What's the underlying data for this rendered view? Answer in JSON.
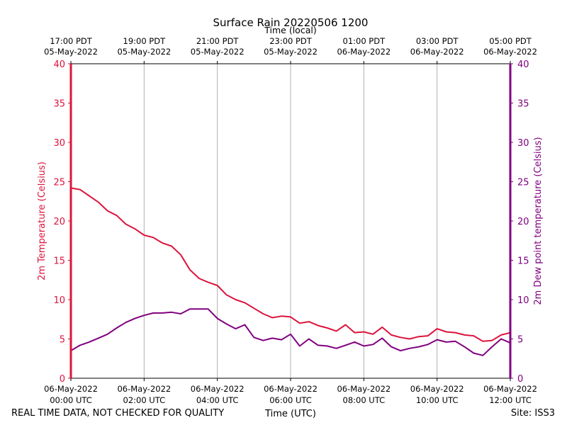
{
  "chart_data": {
    "type": "line",
    "title": "Surface Rain 20220506 1200",
    "top_axis_label": "Time (local)",
    "xlabel": "Time (UTC)",
    "ylabel_left": "2m Temperature (Celsius)",
    "ylabel_right": "2m Dew point temperature (Celsius)",
    "footer_left": "REAL TIME DATA, NOT CHECKED FOR QUALITY",
    "footer_right": "Site: ISS3",
    "x_range_hours": [
      0,
      12
    ],
    "ylim_left": [
      0,
      40
    ],
    "ylim_right": [
      0,
      40
    ],
    "yticks": [
      "0",
      "5",
      "10",
      "15",
      "20",
      "25",
      "30",
      "35",
      "40"
    ],
    "grid_x": true,
    "grid_y": false,
    "colors": {
      "temperature": "#dc143c",
      "dewpoint": "#800080",
      "axis": "#000000",
      "grid": "#b0b0b0"
    },
    "x_ticks_bottom": [
      {
        "hour": 0,
        "line1": "06-May-2022",
        "line2": "00:00 UTC"
      },
      {
        "hour": 2,
        "line1": "06-May-2022",
        "line2": "02:00 UTC"
      },
      {
        "hour": 4,
        "line1": "06-May-2022",
        "line2": "04:00 UTC"
      },
      {
        "hour": 6,
        "line1": "06-May-2022",
        "line2": "06:00 UTC"
      },
      {
        "hour": 8,
        "line1": "06-May-2022",
        "line2": "08:00 UTC"
      },
      {
        "hour": 10,
        "line1": "06-May-2022",
        "line2": "10:00 UTC"
      },
      {
        "hour": 12,
        "line1": "06-May-2022",
        "line2": "12:00 UTC"
      }
    ],
    "x_ticks_top": [
      {
        "hour": 0,
        "line1": "17:00 PDT",
        "line2": "05-May-2022"
      },
      {
        "hour": 2,
        "line1": "19:00 PDT",
        "line2": "05-May-2022"
      },
      {
        "hour": 4,
        "line1": "21:00 PDT",
        "line2": "05-May-2022"
      },
      {
        "hour": 6,
        "line1": "23:00 PDT",
        "line2": "05-May-2022"
      },
      {
        "hour": 8,
        "line1": "01:00 PDT",
        "line2": "06-May-2022"
      },
      {
        "hour": 10,
        "line1": "03:00 PDT",
        "line2": "06-May-2022"
      },
      {
        "hour": 12,
        "line1": "05:00 PDT",
        "line2": "06-May-2022"
      }
    ],
    "series": [
      {
        "name": "2m Temperature",
        "axis": "left",
        "x": [
          0,
          0.25,
          0.5,
          0.75,
          1.0,
          1.25,
          1.5,
          1.75,
          2.0,
          2.25,
          2.5,
          2.75,
          3.0,
          3.25,
          3.5,
          3.75,
          4.0,
          4.25,
          4.5,
          4.75,
          5.0,
          5.25,
          5.5,
          5.75,
          6.0,
          6.25,
          6.5,
          6.75,
          7.0,
          7.25,
          7.5,
          7.75,
          8.0,
          8.25,
          8.5,
          8.75,
          9.0,
          9.25,
          9.5,
          9.75,
          10.0,
          10.25,
          10.5,
          10.75,
          11.0,
          11.25,
          11.5,
          11.75,
          12.0
        ],
        "values": [
          24.2,
          24.0,
          23.2,
          22.4,
          21.3,
          20.7,
          19.6,
          19.0,
          18.2,
          17.9,
          17.2,
          16.8,
          15.7,
          13.8,
          12.7,
          12.2,
          11.8,
          10.6,
          10.0,
          9.6,
          8.9,
          8.2,
          7.7,
          7.9,
          7.8,
          7.0,
          7.2,
          6.7,
          6.4,
          6.0,
          6.8,
          5.8,
          5.9,
          5.6,
          6.5,
          5.5,
          5.2,
          5.0,
          5.3,
          5.4,
          6.3,
          5.9,
          5.8,
          5.5,
          5.4,
          4.7,
          4.8,
          5.5,
          5.8
        ]
      },
      {
        "name": "2m Dew point temperature",
        "axis": "right",
        "x": [
          0,
          0.25,
          0.5,
          0.75,
          1.0,
          1.25,
          1.5,
          1.75,
          2.0,
          2.25,
          2.5,
          2.75,
          3.0,
          3.25,
          3.5,
          3.75,
          4.0,
          4.25,
          4.5,
          4.75,
          5.0,
          5.25,
          5.5,
          5.75,
          6.0,
          6.25,
          6.5,
          6.75,
          7.0,
          7.25,
          7.5,
          7.75,
          8.0,
          8.25,
          8.5,
          8.75,
          9.0,
          9.25,
          9.5,
          9.75,
          10.0,
          10.25,
          10.5,
          10.75,
          11.0,
          11.25,
          11.5,
          11.75,
          12.0
        ],
        "values": [
          3.5,
          4.2,
          4.6,
          5.1,
          5.6,
          6.4,
          7.1,
          7.6,
          8.0,
          8.3,
          8.3,
          8.4,
          8.2,
          8.8,
          8.8,
          8.8,
          7.6,
          6.9,
          6.3,
          6.8,
          5.2,
          4.8,
          5.1,
          4.9,
          5.6,
          4.1,
          5.0,
          4.2,
          4.1,
          3.8,
          4.2,
          4.6,
          4.1,
          4.3,
          5.1,
          4.0,
          3.5,
          3.8,
          4.0,
          4.3,
          4.9,
          4.6,
          4.7,
          4.0,
          3.2,
          2.9,
          4.0,
          5.0,
          4.5
        ]
      }
    ]
  }
}
